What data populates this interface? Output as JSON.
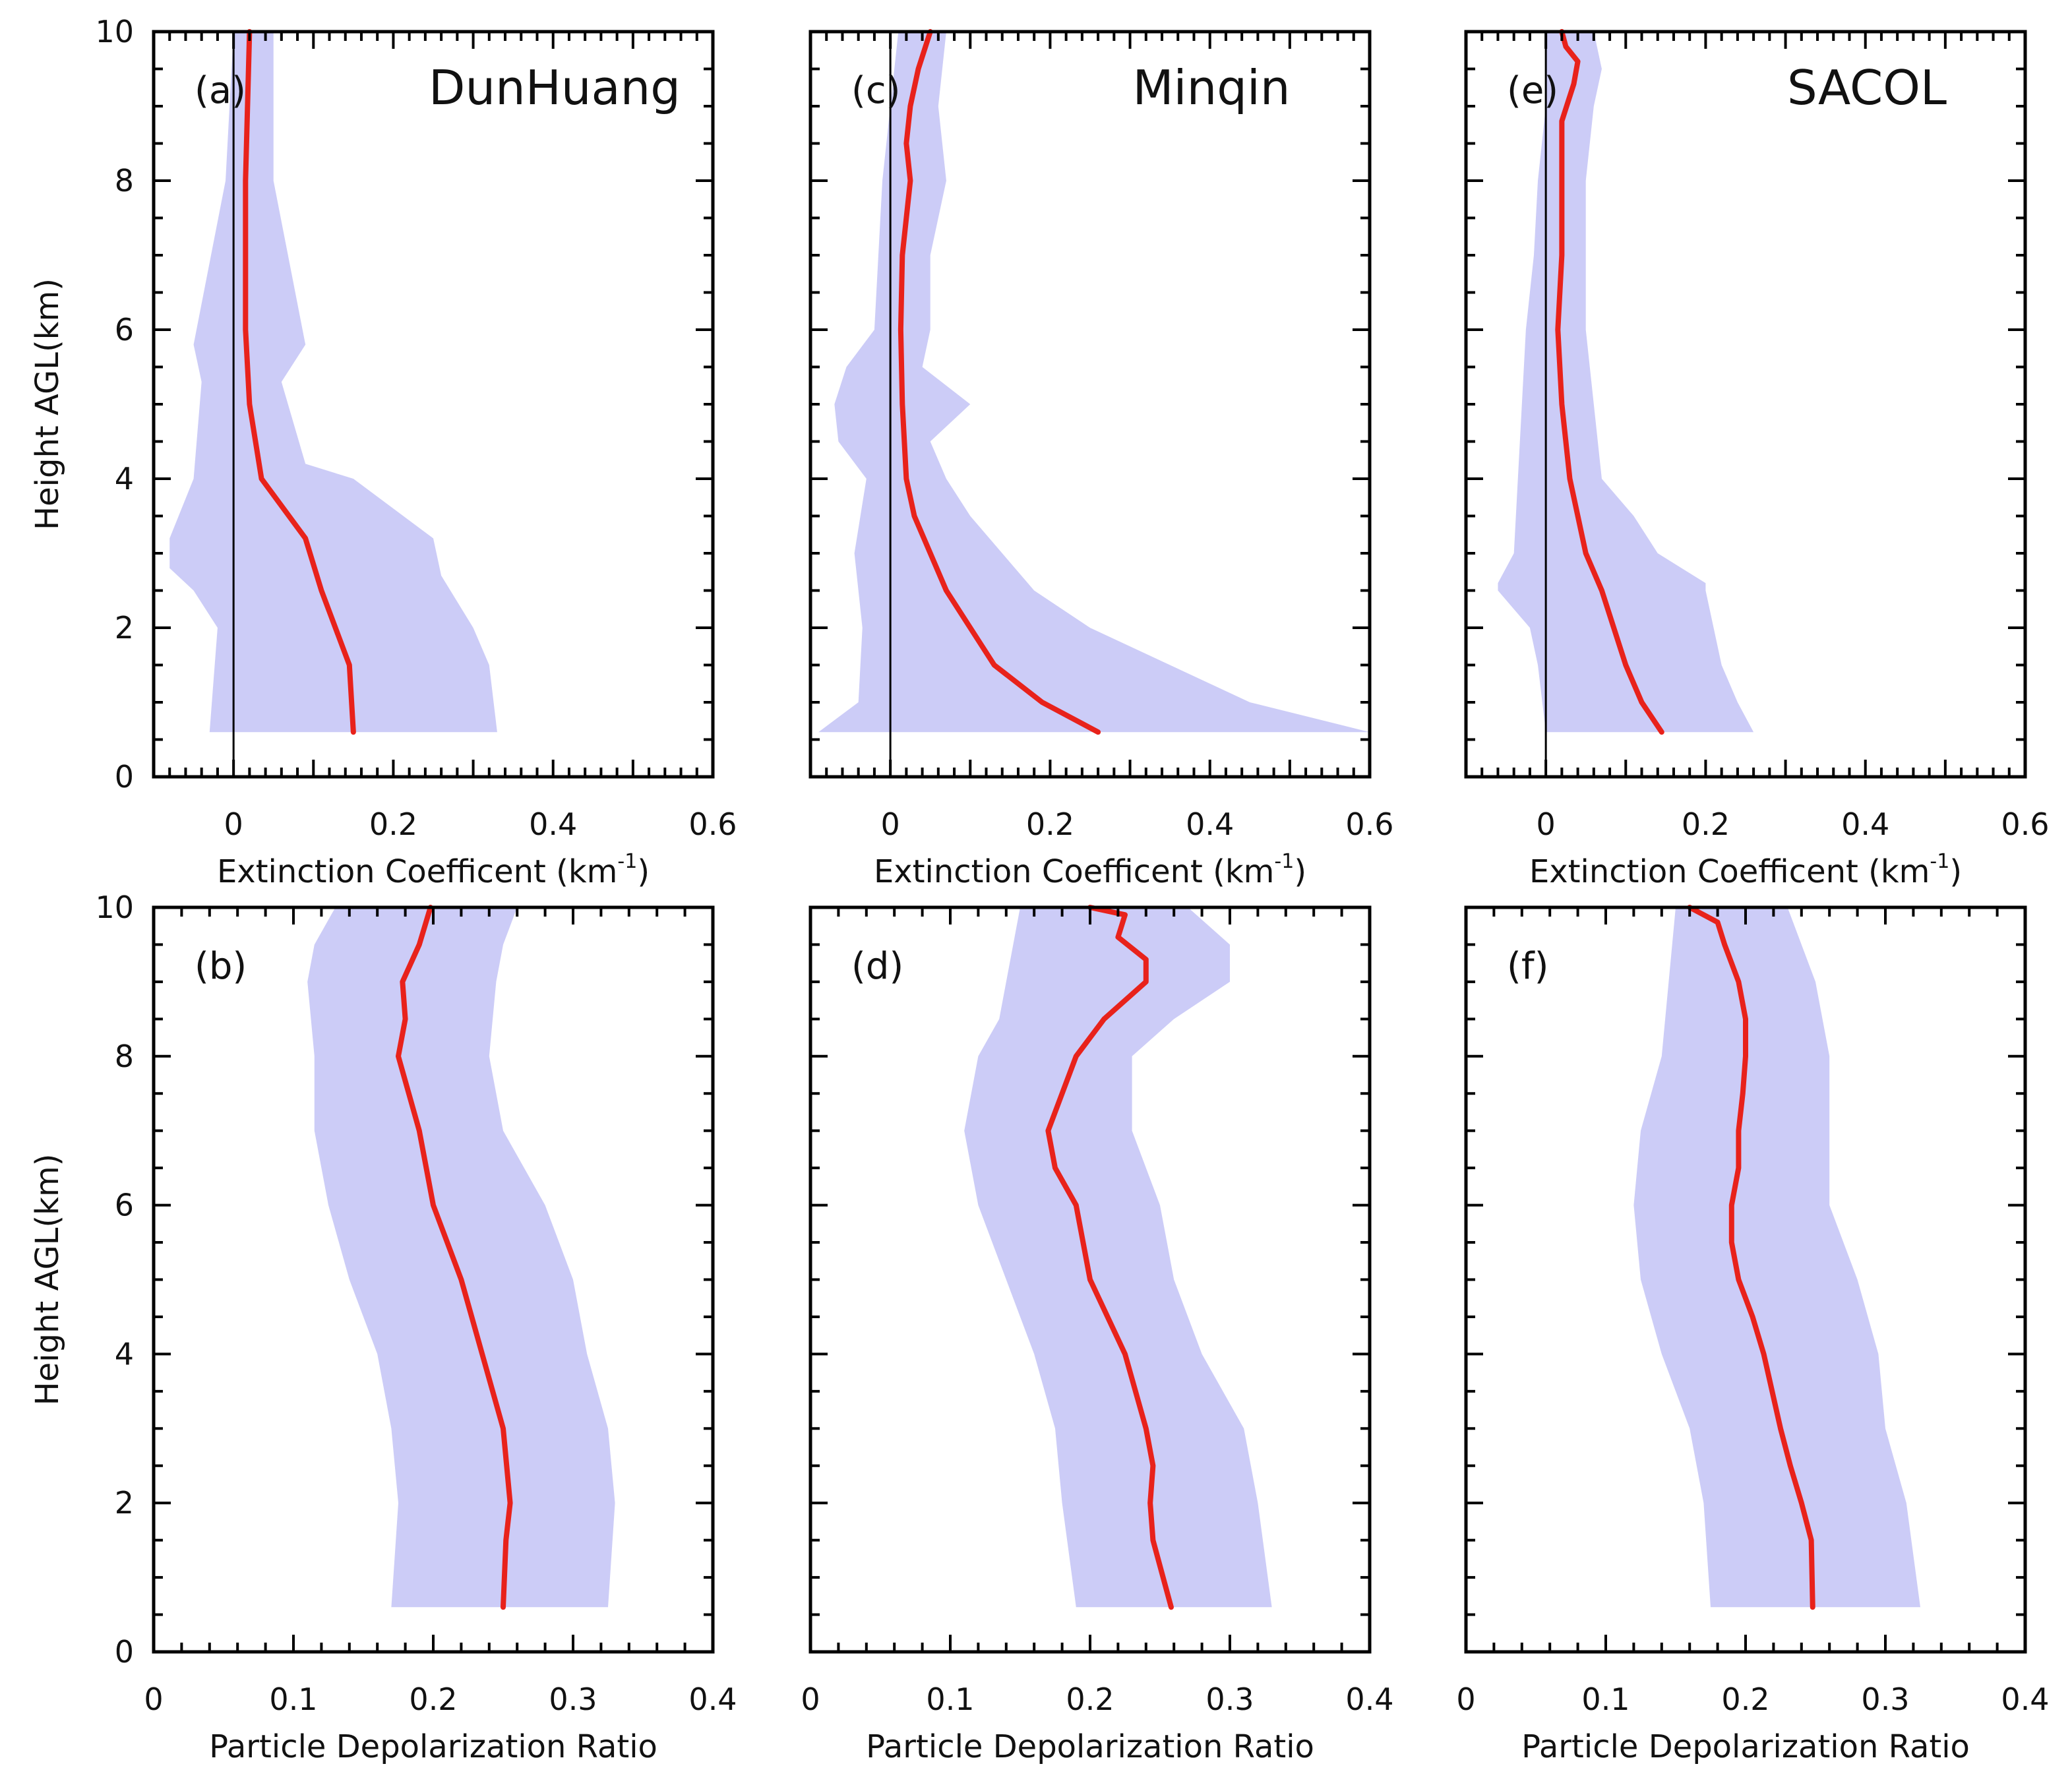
{
  "chart_data": [
    {
      "panel": "(a)",
      "site": "DunHuang",
      "type": "line",
      "title": "DunHuang",
      "xlabel_main": "Extinction Coefficent (km",
      "xlabel_sup": "-1",
      "xlabel_end": ")",
      "ylabel": "Height AGL(km)",
      "xlim": [
        -0.1,
        0.6
      ],
      "ylim": [
        0,
        10
      ],
      "xticks": [
        "0",
        "0.2",
        "0.4",
        "0.6"
      ],
      "xtick_values": [
        0,
        0.2,
        0.4,
        0.6
      ],
      "yticks": [
        "0",
        "2",
        "4",
        "6",
        "8",
        "10"
      ],
      "ytick_values": [
        0,
        2,
        4,
        6,
        8,
        10
      ],
      "zero_line": true,
      "series": [
        {
          "name": "mean",
          "color": "#e8221b",
          "y": [
            0.6,
            1.5,
            2.5,
            3.2,
            4.0,
            5.0,
            6.0,
            8.0,
            10.0
          ],
          "x": [
            0.15,
            0.145,
            0.11,
            0.09,
            0.035,
            0.02,
            0.015,
            0.015,
            0.02
          ]
        },
        {
          "name": "std-upper",
          "color": "#ccccf7",
          "y": [
            0.6,
            1.5,
            2.0,
            2.7,
            3.2,
            4.0,
            4.2,
            5.3,
            5.8,
            8.0,
            10.0
          ],
          "x": [
            0.33,
            0.32,
            0.3,
            0.26,
            0.25,
            0.15,
            0.09,
            0.06,
            0.09,
            0.05,
            0.05
          ]
        },
        {
          "name": "std-lower",
          "color": "#ccccf7",
          "y": [
            0.6,
            2.0,
            2.5,
            2.8,
            3.2,
            4.0,
            5.3,
            5.8,
            8.0,
            10.0
          ],
          "x": [
            -0.03,
            -0.02,
            -0.05,
            -0.08,
            -0.08,
            -0.05,
            -0.04,
            -0.05,
            -0.01,
            0.0
          ]
        }
      ]
    },
    {
      "panel": "(b)",
      "site": "DunHuang",
      "type": "line",
      "xlabel": "Particle Depolarization Ratio",
      "ylabel": "Height AGL(km)",
      "xlim": [
        0,
        0.4
      ],
      "ylim": [
        0,
        10
      ],
      "xticks": [
        "0",
        "0.1",
        "0.2",
        "0.3",
        "0.4"
      ],
      "xtick_values": [
        0,
        0.1,
        0.2,
        0.3,
        0.4
      ],
      "yticks": [
        "0",
        "2",
        "4",
        "6",
        "8",
        "10"
      ],
      "ytick_values": [
        0,
        2,
        4,
        6,
        8,
        10
      ],
      "series": [
        {
          "name": "mean",
          "color": "#e8221b",
          "y": [
            0.6,
            1.5,
            2.0,
            3.0,
            4.0,
            5.0,
            6.0,
            7.0,
            8.0,
            8.5,
            9.0,
            9.5,
            10.0
          ],
          "x": [
            0.25,
            0.252,
            0.255,
            0.25,
            0.235,
            0.22,
            0.2,
            0.19,
            0.175,
            0.18,
            0.178,
            0.19,
            0.198
          ]
        },
        {
          "name": "std-upper",
          "color": "#ccccf7",
          "y": [
            0.6,
            2.0,
            3.0,
            4.0,
            5.0,
            6.0,
            7.0,
            8.0,
            9.0,
            9.5,
            10.0
          ],
          "x": [
            0.325,
            0.33,
            0.325,
            0.31,
            0.3,
            0.28,
            0.25,
            0.24,
            0.245,
            0.25,
            0.26
          ]
        },
        {
          "name": "std-lower",
          "color": "#ccccf7",
          "y": [
            0.6,
            2.0,
            3.0,
            4.0,
            5.0,
            6.0,
            7.0,
            8.0,
            9.0,
            9.5,
            10.0
          ],
          "x": [
            0.17,
            0.175,
            0.17,
            0.16,
            0.14,
            0.125,
            0.115,
            0.115,
            0.11,
            0.115,
            0.13
          ]
        }
      ]
    },
    {
      "panel": "(c)",
      "site": "Minqin",
      "type": "line",
      "title": "Minqin",
      "xlabel_main": "Extinction Coefficent (km",
      "xlabel_sup": "-1",
      "xlabel_end": ")",
      "xlim": [
        -0.1,
        0.6
      ],
      "ylim": [
        0,
        10
      ],
      "xticks": [
        "0",
        "0.2",
        "0.4",
        "0.6"
      ],
      "xtick_values": [
        0,
        0.2,
        0.4,
        0.6
      ],
      "yticks": [],
      "ytick_values": [
        0,
        2,
        4,
        6,
        8,
        10
      ],
      "zero_line": true,
      "series": [
        {
          "name": "mean",
          "color": "#e8221b",
          "y": [
            0.6,
            1.0,
            1.5,
            2.0,
            2.5,
            3.0,
            3.5,
            4.0,
            5.0,
            6.0,
            7.0,
            7.5,
            8.0,
            8.5,
            9.0,
            9.5,
            10.0
          ],
          "x": [
            0.26,
            0.19,
            0.13,
            0.1,
            0.07,
            0.05,
            0.03,
            0.02,
            0.015,
            0.013,
            0.015,
            0.02,
            0.025,
            0.02,
            0.025,
            0.035,
            0.05
          ]
        },
        {
          "name": "std-upper",
          "color": "#ccccf7",
          "y": [
            0.6,
            1.0,
            1.5,
            2.0,
            2.5,
            3.0,
            3.5,
            4.0,
            4.5,
            5.0,
            5.5,
            6.0,
            7.0,
            8.0,
            9.0,
            10.0
          ],
          "x": [
            0.6,
            0.45,
            0.35,
            0.25,
            0.18,
            0.14,
            0.1,
            0.07,
            0.05,
            0.1,
            0.04,
            0.05,
            0.05,
            0.07,
            0.06,
            0.07
          ]
        },
        {
          "name": "std-lower",
          "color": "#ccccf7",
          "y": [
            0.6,
            1.0,
            2.0,
            3.0,
            4.0,
            4.5,
            5.0,
            5.5,
            6.0,
            7.0,
            8.0,
            9.0,
            10.0
          ],
          "x": [
            -0.09,
            -0.04,
            -0.035,
            -0.045,
            -0.03,
            -0.065,
            -0.07,
            -0.055,
            -0.02,
            -0.015,
            -0.01,
            0.0,
            0.01
          ]
        }
      ]
    },
    {
      "panel": "(d)",
      "site": "Minqin",
      "type": "line",
      "xlabel": "Particle Depolarization Ratio",
      "xlim": [
        0,
        0.4
      ],
      "ylim": [
        0,
        10
      ],
      "xticks": [
        "0",
        "0.1",
        "0.2",
        "0.3",
        "0.4"
      ],
      "xtick_values": [
        0,
        0.1,
        0.2,
        0.3,
        0.4
      ],
      "yticks": [],
      "ytick_values": [
        0,
        2,
        4,
        6,
        8,
        10
      ],
      "series": [
        {
          "name": "mean",
          "color": "#e8221b",
          "y": [
            0.6,
            1.5,
            2.0,
            2.5,
            3.0,
            4.0,
            5.0,
            5.5,
            6.0,
            6.5,
            7.0,
            7.5,
            8.0,
            8.5,
            9.0,
            9.3,
            9.6,
            9.9,
            10.0
          ],
          "x": [
            0.258,
            0.245,
            0.243,
            0.245,
            0.24,
            0.225,
            0.2,
            0.195,
            0.19,
            0.175,
            0.17,
            0.18,
            0.19,
            0.21,
            0.24,
            0.24,
            0.22,
            0.225,
            0.2
          ]
        },
        {
          "name": "std-upper",
          "color": "#ccccf7",
          "y": [
            0.6,
            2.0,
            3.0,
            4.0,
            5.0,
            6.0,
            7.0,
            8.0,
            8.5,
            9.0,
            9.5,
            10.0
          ],
          "x": [
            0.33,
            0.32,
            0.31,
            0.28,
            0.26,
            0.25,
            0.23,
            0.23,
            0.26,
            0.3,
            0.3,
            0.27
          ]
        },
        {
          "name": "std-lower",
          "color": "#ccccf7",
          "y": [
            0.6,
            2.0,
            3.0,
            4.0,
            5.0,
            6.0,
            7.0,
            7.5,
            8.0,
            8.5,
            9.0,
            10.0
          ],
          "x": [
            0.19,
            0.18,
            0.175,
            0.16,
            0.14,
            0.12,
            0.11,
            0.115,
            0.12,
            0.135,
            0.14,
            0.15
          ]
        }
      ]
    },
    {
      "panel": "(e)",
      "site": "SACOL",
      "type": "line",
      "title": "SACOL",
      "xlabel_main": "Extinction Coefficent (km",
      "xlabel_sup": "-1",
      "xlabel_end": ")",
      "xlim": [
        -0.1,
        0.6
      ],
      "ylim": [
        0,
        10
      ],
      "xticks": [
        "0",
        "0.2",
        "0.4",
        "0.6"
      ],
      "xtick_values": [
        0,
        0.2,
        0.4,
        0.6
      ],
      "yticks": [],
      "ytick_values": [
        0,
        2,
        4,
        6,
        8,
        10
      ],
      "zero_line": true,
      "series": [
        {
          "name": "mean",
          "color": "#e8221b",
          "y": [
            0.6,
            1.0,
            1.5,
            2.0,
            2.5,
            3.0,
            3.5,
            4.0,
            5.0,
            6.0,
            7.0,
            8.0,
            8.8,
            9.3,
            9.6,
            9.8,
            10.0
          ],
          "x": [
            0.145,
            0.12,
            0.1,
            0.085,
            0.07,
            0.05,
            0.04,
            0.03,
            0.02,
            0.015,
            0.02,
            0.02,
            0.02,
            0.035,
            0.04,
            0.025,
            0.02
          ]
        },
        {
          "name": "std-upper",
          "color": "#ccccf7",
          "y": [
            0.6,
            1.0,
            1.5,
            2.0,
            2.5,
            2.6,
            3.0,
            3.5,
            4.0,
            5.0,
            6.0,
            7.0,
            8.0,
            9.0,
            9.5,
            10.0
          ],
          "x": [
            0.26,
            0.24,
            0.22,
            0.21,
            0.2,
            0.2,
            0.14,
            0.11,
            0.07,
            0.06,
            0.05,
            0.05,
            0.05,
            0.06,
            0.07,
            0.06
          ]
        },
        {
          "name": "std-lower",
          "color": "#ccccf7",
          "y": [
            0.6,
            1.5,
            2.0,
            2.5,
            2.6,
            3.0,
            4.0,
            5.0,
            6.0,
            7.0,
            8.0,
            9.0,
            10.0
          ],
          "x": [
            0.0,
            -0.01,
            -0.02,
            -0.06,
            -0.06,
            -0.04,
            -0.035,
            -0.03,
            -0.025,
            -0.015,
            -0.01,
            0.0,
            0.0
          ]
        }
      ]
    },
    {
      "panel": "(f)",
      "site": "SACOL",
      "type": "line",
      "xlabel": "Particle Depolarization Ratio",
      "xlim": [
        0,
        0.4
      ],
      "ylim": [
        0,
        10
      ],
      "xticks": [
        "0",
        "0.1",
        "0.2",
        "0.3",
        "0.4"
      ],
      "xtick_values": [
        0,
        0.1,
        0.2,
        0.3,
        0.4
      ],
      "yticks": [],
      "ytick_values": [
        0,
        2,
        4,
        6,
        8,
        10
      ],
      "series": [
        {
          "name": "mean",
          "color": "#e8221b",
          "y": [
            0.6,
            1.5,
            2.0,
            2.5,
            3.0,
            4.0,
            4.5,
            5.0,
            5.5,
            6.0,
            6.5,
            7.0,
            7.5,
            8.0,
            8.5,
            9.0,
            9.5,
            9.8,
            10.0
          ],
          "x": [
            0.248,
            0.247,
            0.24,
            0.232,
            0.225,
            0.213,
            0.205,
            0.195,
            0.19,
            0.19,
            0.195,
            0.195,
            0.198,
            0.2,
            0.2,
            0.195,
            0.185,
            0.18,
            0.16
          ]
        },
        {
          "name": "std-upper",
          "color": "#ccccf7",
          "y": [
            0.6,
            2.0,
            3.0,
            4.0,
            5.0,
            6.0,
            7.0,
            8.0,
            9.0,
            9.5,
            10.0
          ],
          "x": [
            0.325,
            0.315,
            0.3,
            0.295,
            0.28,
            0.26,
            0.26,
            0.26,
            0.25,
            0.24,
            0.23
          ]
        },
        {
          "name": "std-lower",
          "color": "#ccccf7",
          "y": [
            0.6,
            2.0,
            3.0,
            4.0,
            5.0,
            6.0,
            7.0,
            8.0,
            9.0,
            10.0
          ],
          "x": [
            0.175,
            0.17,
            0.16,
            0.14,
            0.125,
            0.12,
            0.125,
            0.14,
            0.145,
            0.15
          ]
        }
      ]
    }
  ]
}
